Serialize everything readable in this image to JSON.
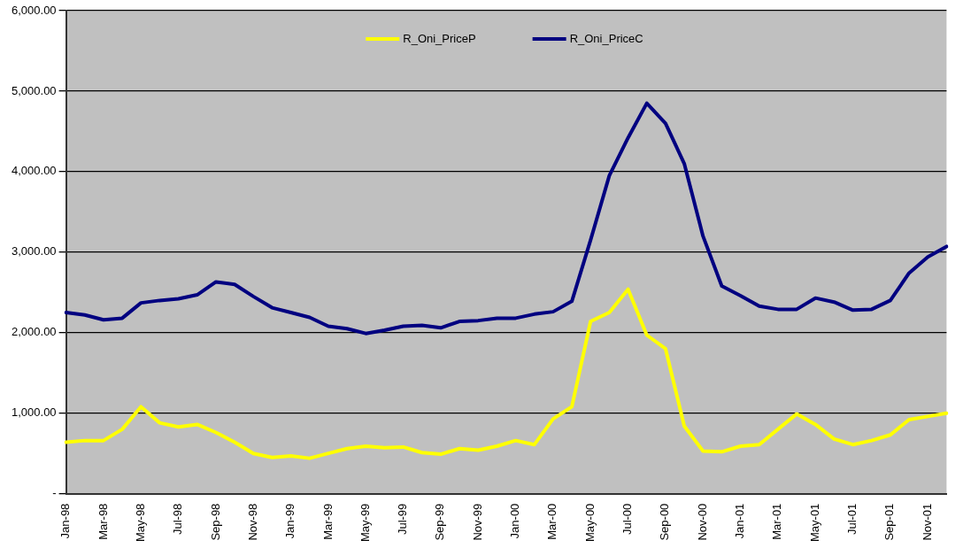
{
  "chart_data": {
    "type": "line",
    "categories": [
      "Jan-98",
      null,
      "Mar-98",
      null,
      "May-98",
      null,
      "Jul-98",
      null,
      "Sep-98",
      null,
      "Nov-98",
      null,
      "Jan-99",
      null,
      "Mar-99",
      null,
      "May-99",
      null,
      "Jul-99",
      null,
      "Sep-99",
      null,
      "Nov-99",
      null,
      "Jan-00",
      null,
      "Mar-00",
      null,
      "May-00",
      null,
      "Jul-00",
      null,
      "Sep-00",
      null,
      "Nov-00",
      null,
      "Jan-01",
      null,
      "Mar-01",
      null,
      "May-01",
      null,
      "Jul-01",
      null,
      "Sep-01",
      null,
      "Nov-01",
      null
    ],
    "series": [
      {
        "name": "R_Oni_PriceP",
        "color": "#ffff00",
        "values": [
          640,
          660,
          660,
          800,
          1080,
          880,
          830,
          860,
          760,
          640,
          500,
          450,
          470,
          440,
          500,
          560,
          590,
          570,
          580,
          510,
          490,
          560,
          540,
          590,
          660,
          610,
          930,
          1080,
          2140,
          2250,
          2540,
          1970,
          1800,
          840,
          530,
          520,
          590,
          610,
          800,
          990,
          860,
          680,
          610,
          660,
          730,
          920,
          960,
          1000
        ]
      },
      {
        "name": "R_Oni_PriceC",
        "color": "#000080",
        "values": [
          2250,
          2220,
          2160,
          2180,
          2370,
          2400,
          2420,
          2470,
          2630,
          2600,
          2450,
          2310,
          2250,
          2190,
          2080,
          2050,
          1990,
          2030,
          2080,
          2090,
          2060,
          2140,
          2150,
          2180,
          2180,
          2230,
          2260,
          2390,
          3150,
          3950,
          4420,
          4850,
          4600,
          4100,
          3200,
          2580,
          2460,
          2330,
          2290,
          2290,
          2430,
          2380,
          2280,
          2290,
          2400,
          2740,
          2940,
          3070
        ]
      }
    ],
    "ylim": [
      0,
      6000
    ],
    "yticks": [
      {
        "value": 0,
        "label": "-"
      },
      {
        "value": 1000,
        "label": "1,000.00"
      },
      {
        "value": 2000,
        "label": "2,000.00"
      },
      {
        "value": 3000,
        "label": "3,000.00"
      },
      {
        "value": 4000,
        "label": "4,000.00"
      },
      {
        "value": 5000,
        "label": "5,000.00"
      },
      {
        "value": 6000,
        "label": "6,000.00"
      }
    ],
    "grid": "y",
    "legend": "top",
    "marker": "none",
    "line_style": "solid"
  }
}
